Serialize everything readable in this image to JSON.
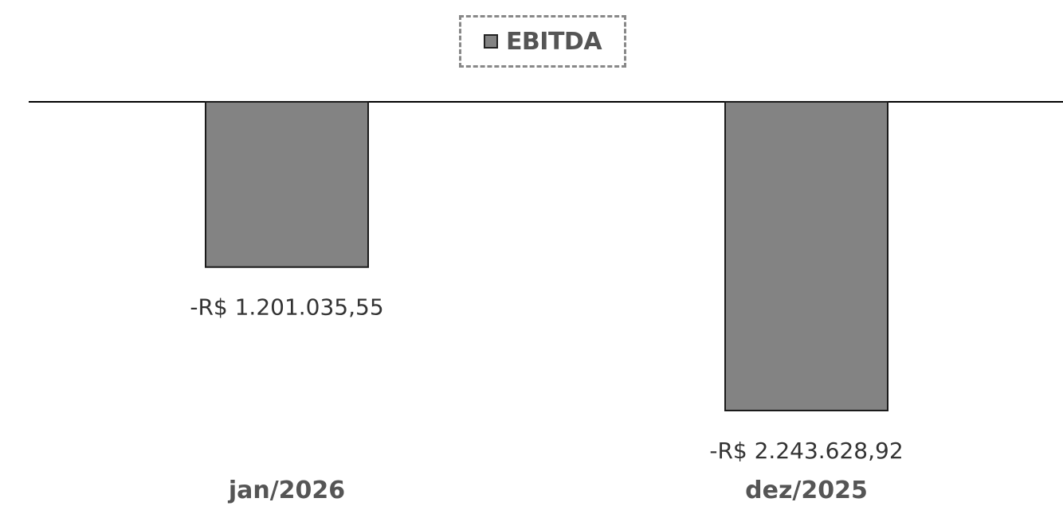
{
  "chart_data": {
    "type": "bar",
    "categories": [
      "jan/2026",
      "dez/2025"
    ],
    "series": [
      {
        "name": "EBITDA",
        "values": [
          -1201035.55,
          -2243628.92
        ]
      }
    ],
    "data_labels": [
      "-R$ 1.201.035,55",
      "-R$ 2.243.628,92"
    ],
    "legend": "top-center",
    "grid": false,
    "ylim": [
      -2243628.92,
      0
    ]
  },
  "colors": {
    "bar_fill": "#838383",
    "bar_stroke": "#1a1a1a",
    "label_text": "#333333",
    "category_text": "#555555"
  }
}
